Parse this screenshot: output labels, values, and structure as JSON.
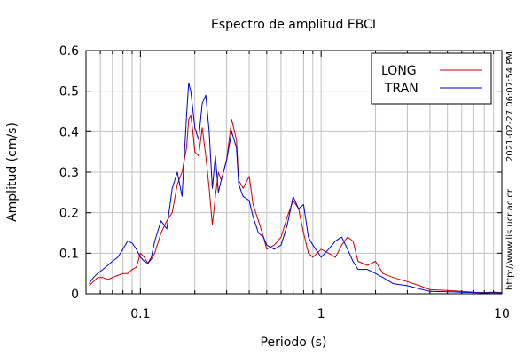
{
  "chart_data": {
    "type": "line",
    "title": "Espectro de amplitud EBCI",
    "xlabel": "Periodo (s)",
    "ylabel": "Amplitud (cm/s)",
    "x_scale": "log",
    "xlim": [
      0.05,
      10
    ],
    "ylim": [
      0,
      0.6
    ],
    "x_ticks": [
      {
        "value": 0.1,
        "label": "0.1"
      },
      {
        "value": 1,
        "label": "1"
      },
      {
        "value": 10,
        "label": "10"
      }
    ],
    "y_ticks": [
      {
        "value": 0,
        "label": "0"
      },
      {
        "value": 0.1,
        "label": "0.1"
      },
      {
        "value": 0.2,
        "label": "0.2"
      },
      {
        "value": 0.3,
        "label": "0.3"
      },
      {
        "value": 0.4,
        "label": "0.4"
      },
      {
        "value": 0.5,
        "label": "0.5"
      },
      {
        "value": 0.6,
        "label": "0.6"
      }
    ],
    "grid": true,
    "legend_position": "top-right",
    "series": [
      {
        "name": "LONG",
        "color": "#cc0000",
        "x": [
          0.052,
          0.055,
          0.058,
          0.062,
          0.066,
          0.07,
          0.075,
          0.08,
          0.085,
          0.09,
          0.095,
          0.1,
          0.105,
          0.11,
          0.115,
          0.12,
          0.13,
          0.14,
          0.15,
          0.16,
          0.17,
          0.18,
          0.185,
          0.19,
          0.195,
          0.2,
          0.21,
          0.22,
          0.23,
          0.24,
          0.25,
          0.26,
          0.27,
          0.28,
          0.3,
          0.32,
          0.34,
          0.35,
          0.37,
          0.4,
          0.42,
          0.45,
          0.48,
          0.5,
          0.55,
          0.6,
          0.65,
          0.7,
          0.75,
          0.8,
          0.85,
          0.9,
          1.0,
          1.1,
          1.2,
          1.3,
          1.4,
          1.5,
          1.6,
          1.8,
          2.0,
          2.2,
          2.5,
          3.0,
          3.5,
          4.0,
          5.0,
          6.0,
          7.0,
          8.0,
          9.0,
          10.0
        ],
        "values": [
          0.02,
          0.03,
          0.04,
          0.04,
          0.035,
          0.04,
          0.045,
          0.05,
          0.05,
          0.06,
          0.065,
          0.1,
          0.09,
          0.075,
          0.085,
          0.1,
          0.15,
          0.18,
          0.2,
          0.27,
          0.3,
          0.36,
          0.43,
          0.44,
          0.4,
          0.35,
          0.34,
          0.41,
          0.34,
          0.26,
          0.17,
          0.24,
          0.3,
          0.28,
          0.33,
          0.43,
          0.38,
          0.28,
          0.26,
          0.29,
          0.22,
          0.18,
          0.14,
          0.11,
          0.12,
          0.14,
          0.19,
          0.23,
          0.21,
          0.15,
          0.1,
          0.09,
          0.11,
          0.1,
          0.09,
          0.12,
          0.14,
          0.13,
          0.08,
          0.07,
          0.08,
          0.05,
          0.04,
          0.03,
          0.02,
          0.01,
          0.008,
          0.006,
          0.004,
          0.003,
          0.004,
          0.003
        ]
      },
      {
        "name": "TRAN",
        "color": "#0000cc",
        "x": [
          0.052,
          0.055,
          0.058,
          0.062,
          0.066,
          0.07,
          0.075,
          0.08,
          0.085,
          0.09,
          0.095,
          0.1,
          0.105,
          0.11,
          0.115,
          0.12,
          0.13,
          0.14,
          0.15,
          0.16,
          0.17,
          0.18,
          0.185,
          0.19,
          0.2,
          0.21,
          0.22,
          0.23,
          0.24,
          0.25,
          0.26,
          0.27,
          0.28,
          0.3,
          0.32,
          0.34,
          0.35,
          0.37,
          0.4,
          0.42,
          0.45,
          0.48,
          0.5,
          0.55,
          0.6,
          0.65,
          0.7,
          0.75,
          0.8,
          0.85,
          0.9,
          1.0,
          1.1,
          1.2,
          1.3,
          1.4,
          1.5,
          1.6,
          1.8,
          2.0,
          2.2,
          2.5,
          3.0,
          3.5,
          4.0,
          5.0,
          6.0,
          7.0,
          8.0,
          9.0,
          10.0
        ],
        "values": [
          0.025,
          0.04,
          0.05,
          0.06,
          0.07,
          0.08,
          0.09,
          0.11,
          0.13,
          0.125,
          0.11,
          0.09,
          0.08,
          0.075,
          0.09,
          0.13,
          0.18,
          0.16,
          0.26,
          0.3,
          0.24,
          0.44,
          0.52,
          0.5,
          0.41,
          0.38,
          0.47,
          0.49,
          0.4,
          0.26,
          0.34,
          0.25,
          0.28,
          0.33,
          0.4,
          0.36,
          0.27,
          0.24,
          0.23,
          0.19,
          0.15,
          0.14,
          0.12,
          0.11,
          0.12,
          0.17,
          0.24,
          0.21,
          0.22,
          0.14,
          0.12,
          0.09,
          0.11,
          0.13,
          0.14,
          0.11,
          0.08,
          0.06,
          0.06,
          0.05,
          0.04,
          0.025,
          0.02,
          0.012,
          0.006,
          0.005,
          0.004,
          0.003,
          0.002,
          0.003,
          0.002
        ]
      }
    ],
    "side_text": {
      "timestamp": "2021-02-27 06:07:54 PM",
      "url": "http://www.lis.ucr.ac.cr"
    }
  }
}
